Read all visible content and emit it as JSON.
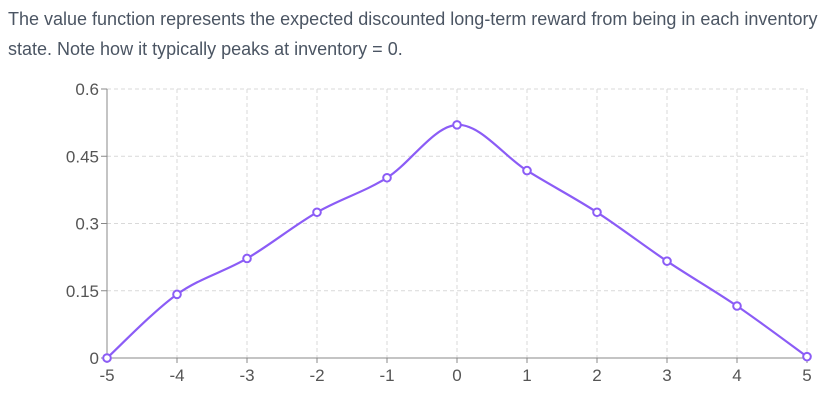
{
  "description": "The value function represents the expected discounted long-term reward from being in each inventory state. Note how it typically peaks at inventory = 0.",
  "colors": {
    "line": "#8b5cf6",
    "grid": "#d9d9d9",
    "axis": "#888888",
    "point_fill": "#ffffff",
    "text": "#555555"
  },
  "chart_data": {
    "type": "line",
    "x": [
      -5,
      -4,
      -3,
      -2,
      -1,
      0,
      1,
      2,
      3,
      4,
      5
    ],
    "series": [
      {
        "values": [
          0.0,
          0.142,
          0.222,
          0.325,
          0.402,
          0.52,
          0.418,
          0.325,
          0.216,
          0.116,
          0.003
        ]
      }
    ],
    "xlim": [
      -5,
      5
    ],
    "ylim": [
      0,
      0.6
    ],
    "x_ticks": [
      "-5",
      "-4",
      "-3",
      "-2",
      "-1",
      "0",
      "1",
      "2",
      "3",
      "4",
      "5"
    ],
    "y_ticks": [
      "0",
      "0.15",
      "0.3",
      "0.45",
      "0.6"
    ],
    "y_tick_values": [
      0,
      0.15,
      0.3,
      0.45,
      0.6
    ],
    "grid": true,
    "smooth": true,
    "title": "",
    "xlabel": "",
    "ylabel": ""
  }
}
